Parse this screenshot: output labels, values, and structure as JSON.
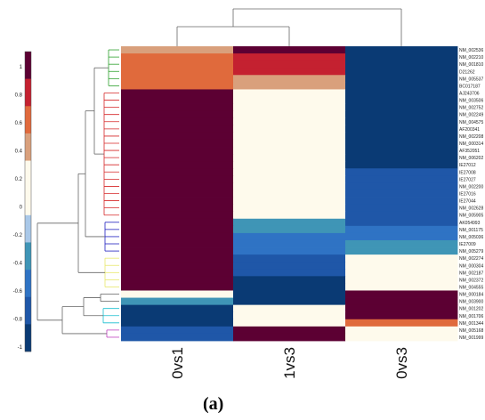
{
  "panel_label": "(a)",
  "chart_data": {
    "type": "heatmap",
    "title": "",
    "xlabel": "",
    "ylabel": "",
    "columns": [
      "0vs1",
      "1vs3",
      "0vs3"
    ],
    "rows": [
      "NM_002536",
      "NM_002210",
      "NM_001810",
      "D21262",
      "NM_005537",
      "BC017187",
      "AJ243706",
      "NM_003506",
      "NM_002752",
      "NM_002249",
      "NM_004575",
      "AF200341",
      "NM_002208",
      "NM_000314",
      "AF352051",
      "NM_006202",
      "IE27012",
      "IE27008",
      "IE27027",
      "NM_002200",
      "IE27016",
      "IE27044",
      "NM_002628",
      "NM_005905",
      "AK054993",
      "NM_001175",
      "NM_005036",
      "IE27009",
      "NM_005279",
      "NM_002274",
      "NM_000304",
      "NM_002187",
      "NM_002372",
      "NM_004555",
      "NM_000184",
      "NM_003900",
      "NM_001202",
      "NM_001706",
      "NM_001344",
      "NM_005168",
      "NM_001999"
    ],
    "row_group_colors": [
      "#2ca02c",
      "#2ca02c",
      "#2ca02c",
      "#2ca02c",
      "#2ca02c",
      "#2ca02c",
      "#d62728",
      "#d62728",
      "#d62728",
      "#d62728",
      "#d62728",
      "#d62728",
      "#d62728",
      "#d62728",
      "#d62728",
      "#d62728",
      "#d62728",
      "#d62728",
      "#d62728",
      "#d62728",
      "#d62728",
      "#d62728",
      "#d62728",
      "#d62728",
      "#1f1fbf",
      "#1f1fbf",
      "#1f1fbf",
      "#1f1fbf",
      "#1f1fbf",
      "#e8e86a",
      "#e8e86a",
      "#e8e86a",
      "#e8e86a",
      "#e8e86a",
      "#606060",
      "#606060",
      "#17becf",
      "#17becf",
      "#17becf",
      "#c040c0",
      "#c040c0"
    ],
    "values": [
      [
        0.45,
        0.95,
        -1.0
      ],
      [
        0.62,
        0.7,
        -1.0
      ],
      [
        0.62,
        0.7,
        -1.0
      ],
      [
        0.62,
        0.7,
        -1.0
      ],
      [
        0.62,
        0.45,
        -1.0
      ],
      [
        0.62,
        0.45,
        -1.0
      ],
      [
        0.85,
        0.1,
        -1.0
      ],
      [
        0.85,
        0.1,
        -1.0
      ],
      [
        0.85,
        0.1,
        -1.0
      ],
      [
        0.85,
        0.1,
        -1.0
      ],
      [
        0.85,
        0.1,
        -1.0
      ],
      [
        1.0,
        0.1,
        -1.0
      ],
      [
        1.0,
        0.1,
        -1.0
      ],
      [
        1.0,
        0.1,
        -1.0
      ],
      [
        1.0,
        0.1,
        -1.0
      ],
      [
        1.0,
        0.1,
        -1.0
      ],
      [
        1.0,
        0.1,
        -1.0
      ],
      [
        1.0,
        0.1,
        -0.8
      ],
      [
        1.0,
        0.1,
        -0.8
      ],
      [
        1.0,
        0.1,
        -0.8
      ],
      [
        1.0,
        0.1,
        -0.8
      ],
      [
        1.0,
        0.1,
        -0.8
      ],
      [
        1.0,
        0.1,
        -0.8
      ],
      [
        1.0,
        0.1,
        -0.8
      ],
      [
        1.0,
        -0.35,
        -0.8
      ],
      [
        1.0,
        -0.35,
        -0.55
      ],
      [
        1.0,
        -0.55,
        -0.55
      ],
      [
        1.0,
        -0.55,
        -0.35
      ],
      [
        1.0,
        -0.55,
        -0.35
      ],
      [
        1.0,
        -0.8,
        0.1
      ],
      [
        1.0,
        -0.8,
        0.1
      ],
      [
        1.0,
        -0.8,
        0.1
      ],
      [
        0.85,
        -1.0,
        0.1
      ],
      [
        0.85,
        -1.0,
        0.1
      ],
      [
        0.1,
        -1.0,
        1.0
      ],
      [
        -0.35,
        -1.0,
        1.0
      ],
      [
        -1.0,
        0.1,
        1.0
      ],
      [
        -1.0,
        0.1,
        1.0
      ],
      [
        -1.0,
        0.1,
        0.62
      ],
      [
        -0.8,
        1.0,
        0.1
      ],
      [
        -0.8,
        1.0,
        0.1
      ]
    ],
    "colorbar": {
      "range": [
        -1,
        1
      ],
      "tick_labels": [
        "1",
        "0.8",
        "0.6",
        "0.4",
        "0.2",
        "0",
        "-0.2",
        "-0.4",
        "-0.6",
        "-0.8",
        "-1"
      ],
      "tick_values": [
        1,
        0.8,
        0.6,
        0.4,
        0.2,
        0,
        -0.2,
        -0.4,
        -0.6,
        -0.8,
        -1
      ]
    },
    "palette": [
      "#0a3a74",
      "#1f57a8",
      "#2f73c4",
      "#3f95b6",
      "#a9c8e8",
      "#fefaec",
      "#fefaec",
      "#d9a07c",
      "#e06a3c",
      "#c42130",
      "#5c0033"
    ]
  }
}
